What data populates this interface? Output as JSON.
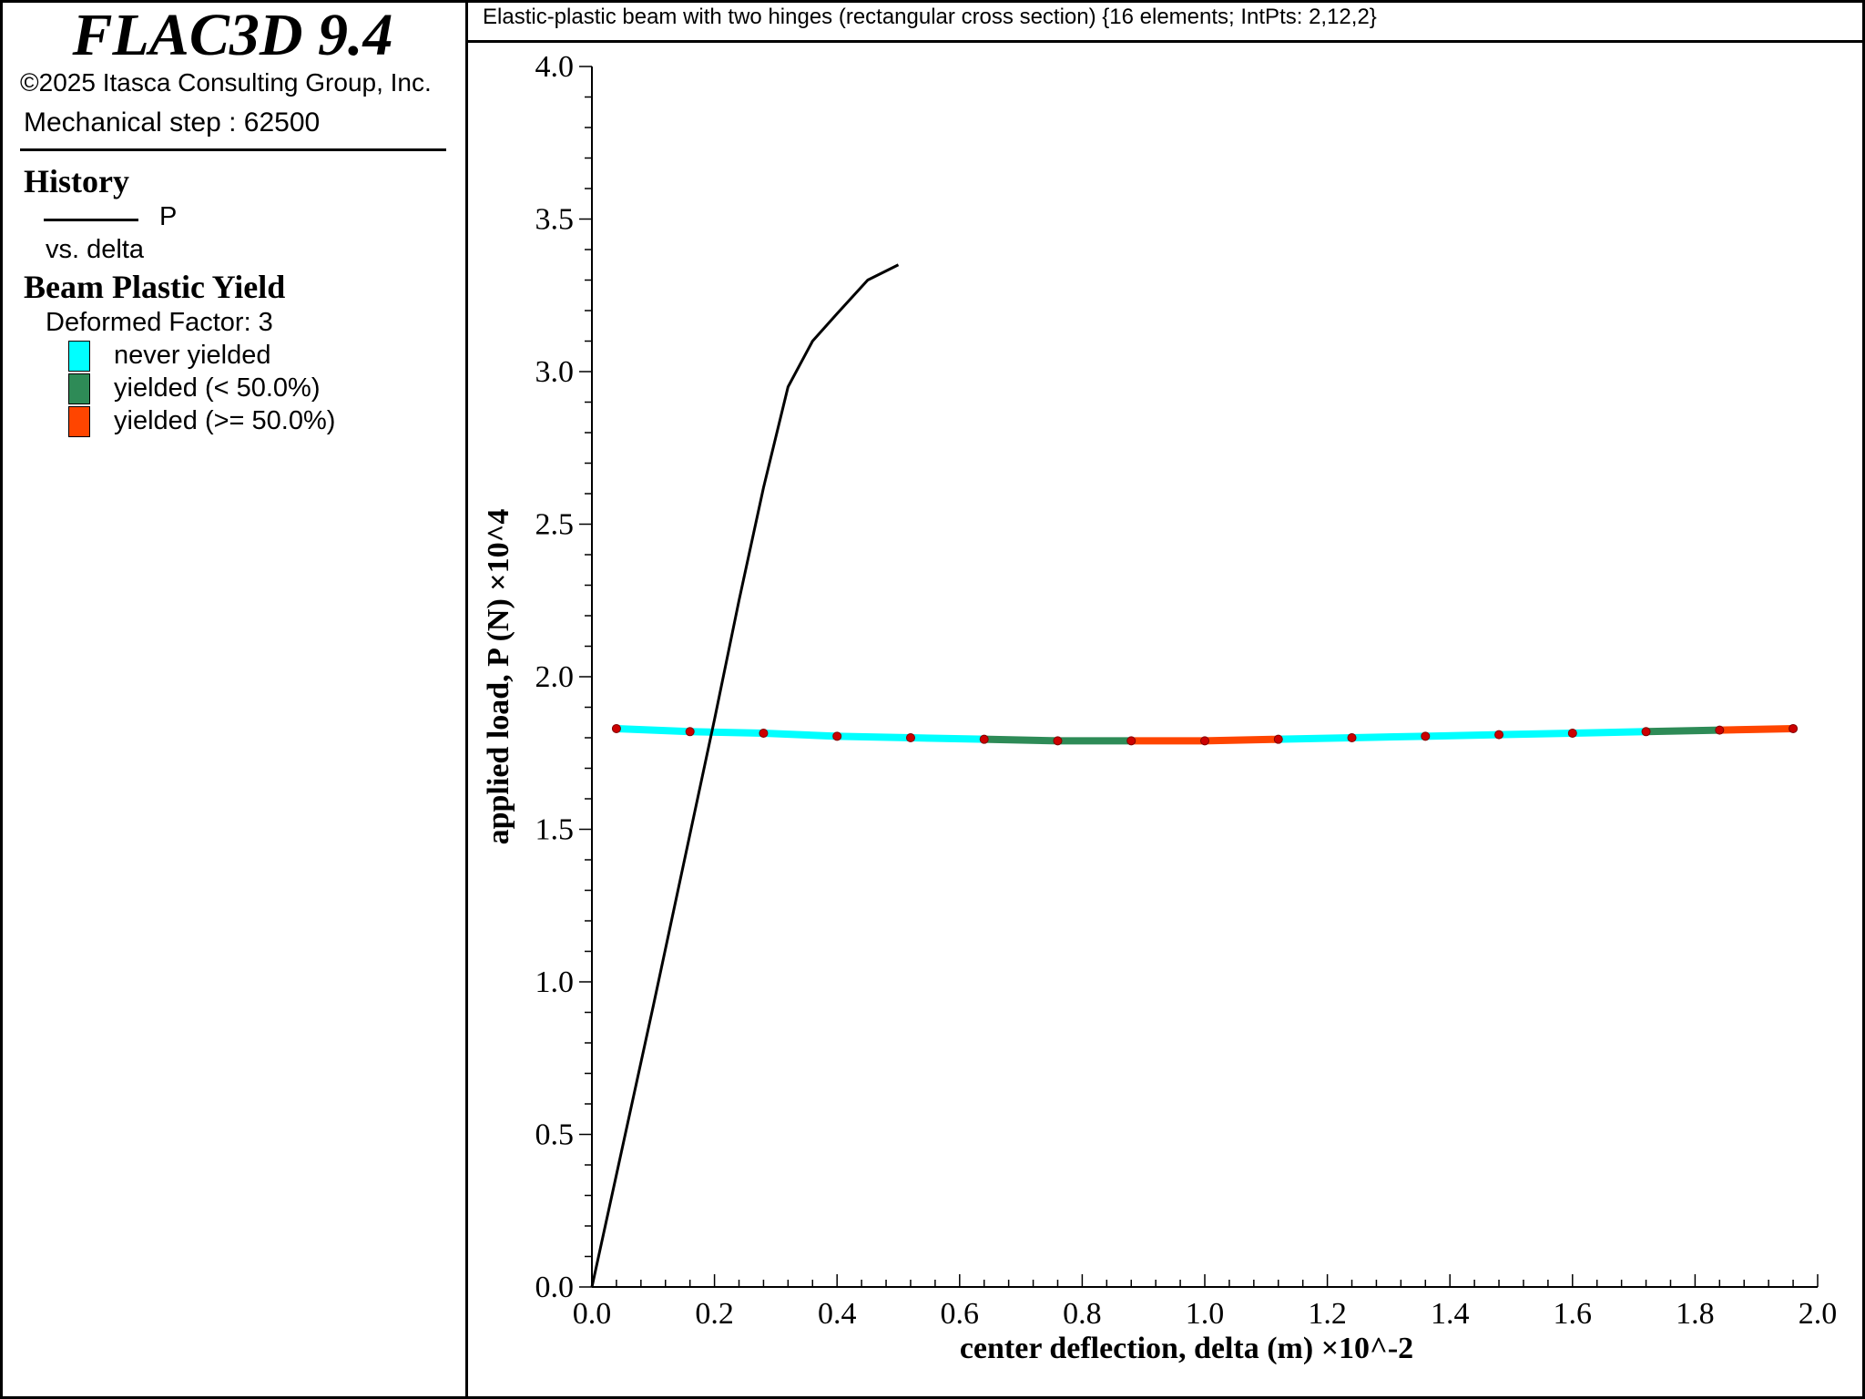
{
  "app": {
    "title": "FLAC3D 9.4",
    "copyright": "©2025 Itasca Consulting Group, Inc.",
    "step": "Mechanical step : 62500"
  },
  "legend": {
    "history_heading": "History",
    "history_series": "P",
    "history_vs": "vs. delta",
    "yield_heading": "Beam Plastic Yield",
    "deformed_factor": "Deformed Factor: 3",
    "items": [
      {
        "label": "never yielded",
        "color": "#00ffff"
      },
      {
        "label": "yielded (< 50.0%)",
        "color": "#2e8b57"
      },
      {
        "label": "yielded (>= 50.0%)",
        "color": "#ff4500"
      }
    ]
  },
  "plot_title": "Elastic-plastic beam with two hinges (rectangular cross section) {16 elements; IntPts: 2,12,2}",
  "chart_data": {
    "type": "line",
    "xlabel": "center deflection, delta (m) ×10^-2",
    "ylabel": "applied load, P (N) ×10^4",
    "xlim": [
      0,
      2.0
    ],
    "ylim": [
      0,
      4.0
    ],
    "x_ticks": [
      "0.0",
      "0.2",
      "0.4",
      "0.6",
      "0.8",
      "1.0",
      "1.2",
      "1.4",
      "1.6",
      "1.8",
      "2.0"
    ],
    "y_ticks": [
      "0.0",
      "0.5",
      "1.0",
      "1.5",
      "2.0",
      "2.5",
      "3.0",
      "3.5",
      "4.0"
    ],
    "grid": false,
    "series": [
      {
        "name": "P",
        "color": "#000000",
        "x": [
          0,
          0.1,
          0.2,
          0.24,
          0.28,
          0.32,
          0.36,
          0.4,
          0.45,
          0.5
        ],
        "y": [
          0,
          0.92,
          1.86,
          2.25,
          2.62,
          2.95,
          3.1,
          3.19,
          3.3,
          3.35
        ]
      }
    ],
    "beam_overlay": {
      "nodes_x": [
        0.04,
        0.16,
        0.28,
        0.4,
        0.52,
        0.64,
        0.76,
        0.88,
        1.0,
        1.12,
        1.24,
        1.36,
        1.48,
        1.6,
        1.72,
        1.84,
        1.96
      ],
      "nodes_y": [
        1.83,
        1.82,
        1.815,
        1.805,
        1.8,
        1.795,
        1.79,
        1.79,
        1.79,
        1.795,
        1.8,
        1.805,
        1.81,
        1.815,
        1.82,
        1.825,
        1.83
      ],
      "element_state": [
        "never",
        "never",
        "never",
        "never",
        "never",
        "lt50",
        "lt50",
        "ge50",
        "ge50",
        "never",
        "never",
        "never",
        "never",
        "never",
        "lt50",
        "ge50"
      ],
      "node_color": "#cc0000"
    }
  }
}
